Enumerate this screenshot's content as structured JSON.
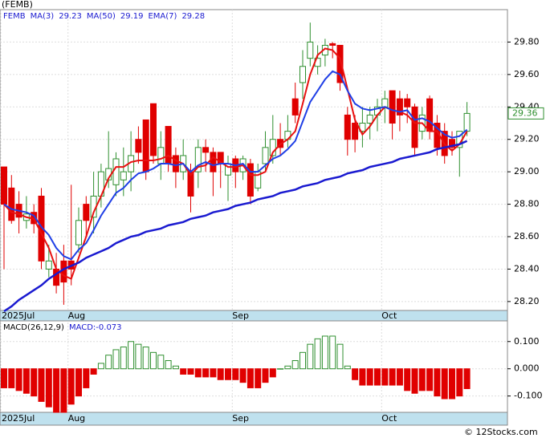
{
  "chart_data": {
    "type": "candlestick",
    "title": "(FEMB)",
    "symbol": "FEMB",
    "footer": "© 12Stocks.com",
    "categories": [
      "2025Jul",
      null,
      null,
      null,
      null,
      null,
      null,
      null,
      null,
      "Aug",
      null,
      null,
      null,
      null,
      null,
      null,
      null,
      null,
      null,
      null,
      null,
      null,
      null,
      null,
      null,
      null,
      null,
      null,
      null,
      null,
      null,
      "Sep",
      null,
      null,
      null,
      null,
      null,
      null,
      null,
      null,
      null,
      null,
      null,
      null,
      null,
      null,
      null,
      null,
      null,
      null,
      null,
      "Oct",
      null,
      null,
      null,
      null,
      null,
      null,
      null,
      null,
      null,
      null,
      null
    ],
    "open": [
      29.03,
      28.9,
      28.8,
      28.7,
      28.75,
      28.85,
      28.4,
      28.4,
      28.45,
      28.45,
      28.55,
      28.8,
      28.72,
      28.85,
      28.95,
      28.92,
      28.95,
      29.0,
      29.2,
      29.32,
      29.42,
      29.05,
      29.28,
      29.1,
      29.0,
      29.0,
      29.0,
      29.15,
      29.12,
      29.12,
      28.98,
      29.08,
      29.0,
      29.05,
      28.9,
      29.05,
      29.1,
      29.2,
      29.2,
      29.45,
      29.55,
      29.7,
      29.65,
      29.72,
      29.79,
      29.78,
      29.35,
      29.3,
      29.25,
      29.3,
      29.35,
      29.4,
      29.5,
      29.45,
      29.45,
      29.4,
      29.25,
      29.45,
      29.3,
      29.25,
      29.2,
      29.15,
      29.25
    ],
    "high": [
      29.03,
      28.98,
      28.88,
      28.85,
      28.8,
      28.9,
      28.55,
      28.5,
      28.55,
      28.92,
      28.78,
      28.85,
      29.0,
      29.05,
      29.25,
      29.12,
      29.15,
      29.25,
      29.28,
      29.32,
      29.42,
      29.25,
      29.28,
      29.15,
      29.2,
      29.05,
      29.2,
      29.2,
      29.15,
      29.12,
      29.1,
      29.1,
      29.1,
      29.08,
      29.05,
      29.25,
      29.35,
      29.3,
      29.35,
      29.55,
      29.75,
      29.92,
      29.78,
      29.82,
      29.8,
      29.78,
      29.4,
      29.35,
      29.4,
      29.4,
      29.45,
      29.5,
      29.5,
      29.5,
      29.48,
      29.42,
      29.4,
      29.47,
      29.35,
      29.3,
      29.25,
      29.25,
      29.43
    ],
    "low": [
      28.4,
      28.68,
      28.62,
      28.65,
      28.62,
      28.4,
      28.35,
      28.25,
      28.18,
      28.3,
      28.5,
      28.6,
      28.62,
      28.78,
      28.9,
      28.85,
      28.85,
      28.88,
      29.05,
      28.95,
      29.05,
      28.95,
      29.0,
      28.9,
      28.95,
      28.75,
      28.9,
      29.0,
      28.85,
      28.9,
      28.82,
      28.9,
      28.95,
      28.8,
      28.88,
      29.0,
      29.05,
      29.1,
      29.15,
      29.3,
      29.45,
      29.65,
      29.6,
      29.65,
      29.7,
      29.5,
      29.1,
      29.12,
      29.15,
      29.2,
      29.25,
      29.3,
      29.2,
      29.25,
      29.3,
      29.1,
      29.2,
      29.2,
      29.1,
      29.05,
      29.1,
      28.97,
      29.22
    ],
    "close": [
      28.8,
      28.7,
      28.72,
      28.74,
      28.68,
      28.45,
      28.45,
      28.3,
      28.32,
      28.4,
      28.7,
      28.7,
      28.85,
      29.0,
      29.02,
      29.08,
      29.0,
      29.1,
      29.12,
      29.0,
      29.1,
      29.15,
      29.05,
      29.0,
      29.1,
      28.85,
      29.15,
      29.12,
      29.0,
      29.05,
      29.05,
      29.0,
      29.08,
      28.85,
      29.0,
      29.15,
      29.2,
      29.15,
      29.25,
      29.35,
      29.65,
      29.8,
      29.7,
      29.78,
      29.78,
      29.55,
      29.2,
      29.2,
      29.3,
      29.35,
      29.4,
      29.45,
      29.3,
      29.35,
      29.4,
      29.15,
      29.35,
      29.25,
      29.15,
      29.1,
      29.15,
      29.25,
      29.36
    ],
    "up_color": "#2f8f2f",
    "down_color": "#e00000",
    "series": [
      {
        "name": "MA(3)",
        "last": 29.23,
        "color": "#e81010",
        "width": 2,
        "values": [
          28.8,
          28.75,
          28.74,
          28.72,
          28.71,
          28.62,
          28.53,
          28.4,
          28.36,
          28.34,
          28.47,
          28.6,
          28.75,
          28.85,
          28.96,
          29.03,
          29.03,
          29.06,
          29.07,
          29.07,
          29.07,
          29.08,
          29.1,
          29.07,
          29.05,
          28.98,
          29.03,
          29.04,
          29.09,
          29.06,
          29.03,
          29.03,
          29.04,
          28.98,
          28.98,
          29.0,
          29.12,
          29.17,
          29.2,
          29.25,
          29.42,
          29.6,
          29.72,
          29.76,
          29.75,
          29.7,
          29.51,
          29.32,
          29.23,
          29.28,
          29.35,
          29.4,
          29.38,
          29.37,
          29.35,
          29.3,
          29.3,
          29.25,
          29.25,
          29.17,
          29.13,
          29.17,
          29.25
        ]
      },
      {
        "name": "MA(50)",
        "last": 29.19,
        "color": "#1a1ad0",
        "width": 2.5,
        "values": [
          28.14,
          28.17,
          28.21,
          28.24,
          28.27,
          28.3,
          28.34,
          28.37,
          28.4,
          28.42,
          28.44,
          28.47,
          28.49,
          28.51,
          28.53,
          28.56,
          28.58,
          28.6,
          28.61,
          28.63,
          28.64,
          28.65,
          28.67,
          28.68,
          28.69,
          28.71,
          28.72,
          28.73,
          28.75,
          28.76,
          28.77,
          28.79,
          28.8,
          28.81,
          28.83,
          28.84,
          28.85,
          28.87,
          28.88,
          28.89,
          28.91,
          28.92,
          28.93,
          28.95,
          28.96,
          28.97,
          28.99,
          29.0,
          29.01,
          29.03,
          29.04,
          29.05,
          29.06,
          29.08,
          29.09,
          29.1,
          29.11,
          29.12,
          29.14,
          29.15,
          29.16,
          29.17,
          29.19
        ]
      },
      {
        "name": "EMA(7)",
        "last": 29.28,
        "color": "#1f3fe6",
        "width": 2,
        "values": [
          28.8,
          28.77,
          28.76,
          28.75,
          28.73,
          28.66,
          28.61,
          28.53,
          28.48,
          28.46,
          28.52,
          28.56,
          28.64,
          28.73,
          28.8,
          28.87,
          28.9,
          28.95,
          28.99,
          29.0,
          29.02,
          29.05,
          29.05,
          29.04,
          29.05,
          29.0,
          29.04,
          29.06,
          29.04,
          29.05,
          29.05,
          29.04,
          29.05,
          29.0,
          29.0,
          29.04,
          29.08,
          29.1,
          29.14,
          29.19,
          29.31,
          29.43,
          29.5,
          29.57,
          29.62,
          29.6,
          29.5,
          29.42,
          29.39,
          29.38,
          29.39,
          29.4,
          29.38,
          29.37,
          29.38,
          29.32,
          29.33,
          29.31,
          29.27,
          29.23,
          29.21,
          29.22,
          29.26
        ]
      }
    ],
    "last_price": 29.36,
    "ylim": [
      28.145,
      30.0
    ],
    "yticks": [
      {
        "value": 28.2,
        "label": "28.20"
      },
      {
        "value": 28.4,
        "label": "28.40"
      },
      {
        "value": 28.6,
        "label": "28.60"
      },
      {
        "value": 28.8,
        "label": "28.80"
      },
      {
        "value": 29.0,
        "label": "29.00"
      },
      {
        "value": 29.2,
        "label": "29.20"
      },
      {
        "value": 29.4,
        "label": "29.40"
      },
      {
        "value": 29.6,
        "label": "29.60"
      },
      {
        "value": 29.8,
        "label": "29.80"
      }
    ],
    "grid": true,
    "macd": {
      "label": "MACD(26,12,9)",
      "value_label": "MACD:-0.073",
      "pos_color": "#2f8f2f",
      "neg_color": "#e00000",
      "values": [
        -0.07,
        -0.07,
        -0.08,
        -0.09,
        -0.1,
        -0.12,
        -0.14,
        -0.16,
        -0.16,
        -0.13,
        -0.1,
        -0.07,
        -0.02,
        0.02,
        0.05,
        0.07,
        0.08,
        0.1,
        0.09,
        0.08,
        0.06,
        0.05,
        0.03,
        0.01,
        -0.02,
        -0.02,
        -0.03,
        -0.03,
        -0.03,
        -0.04,
        -0.04,
        -0.04,
        -0.05,
        -0.07,
        -0.07,
        -0.05,
        -0.03,
        0.0,
        0.01,
        0.03,
        0.06,
        0.09,
        0.11,
        0.12,
        0.12,
        0.09,
        0.01,
        -0.04,
        -0.06,
        -0.06,
        -0.06,
        -0.06,
        -0.06,
        -0.06,
        -0.08,
        -0.09,
        -0.08,
        -0.08,
        -0.1,
        -0.11,
        -0.11,
        -0.1,
        -0.073
      ],
      "ylim": [
        -0.16,
        0.17
      ],
      "yticks": [
        {
          "value": 0.1,
          "label": "0.100"
        },
        {
          "value": 0,
          "label": "0.000"
        },
        {
          "value": -0.1,
          "label": "-0.100"
        }
      ]
    }
  }
}
